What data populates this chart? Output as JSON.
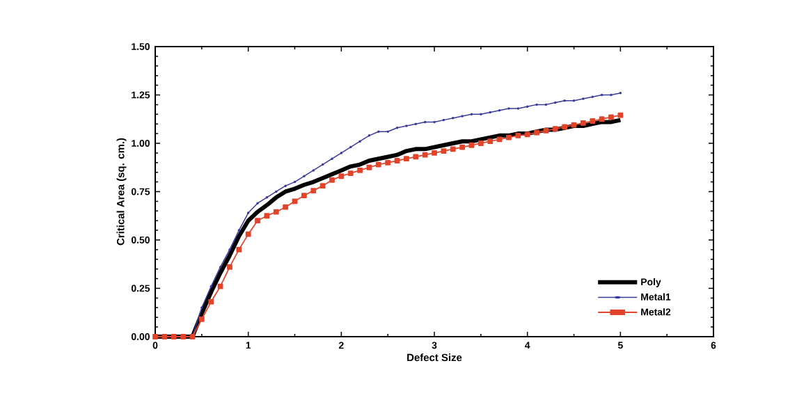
{
  "chart_data": {
    "type": "line",
    "xlabel": "Defect Size",
    "ylabel": "Critical Area (sq. cm.)",
    "x": [
      0,
      0.1,
      0.2,
      0.3,
      0.4,
      0.5,
      0.6,
      0.7,
      0.8,
      0.9,
      1.0,
      1.1,
      1.2,
      1.3,
      1.4,
      1.5,
      1.6,
      1.7,
      1.8,
      1.9,
      2.0,
      2.1,
      2.2,
      2.3,
      2.4,
      2.5,
      2.6,
      2.7,
      2.8,
      2.9,
      3.0,
      3.1,
      3.2,
      3.3,
      3.4,
      3.5,
      3.6,
      3.7,
      3.8,
      3.9,
      4.0,
      4.1,
      4.2,
      4.3,
      4.4,
      4.5,
      4.6,
      4.7,
      4.8,
      4.9,
      5.0
    ],
    "series": [
      {
        "name": "Poly",
        "color": "#000000",
        "marker": "none",
        "values": [
          0,
          0,
          0,
          0,
          0,
          0.12,
          0.23,
          0.33,
          0.42,
          0.52,
          0.6,
          0.645,
          0.68,
          0.72,
          0.75,
          0.765,
          0.785,
          0.8,
          0.82,
          0.84,
          0.86,
          0.88,
          0.89,
          0.91,
          0.92,
          0.93,
          0.94,
          0.96,
          0.97,
          0.97,
          0.98,
          0.99,
          1.0,
          1.01,
          1.01,
          1.02,
          1.03,
          1.04,
          1.04,
          1.05,
          1.05,
          1.06,
          1.07,
          1.07,
          1.08,
          1.09,
          1.09,
          1.1,
          1.11,
          1.11,
          1.12
        ]
      },
      {
        "name": "Metal1",
        "color": "#3a3a9a",
        "marker": "circle",
        "values": [
          null,
          null,
          null,
          0,
          0,
          0.15,
          0.26,
          0.36,
          0.45,
          0.55,
          0.64,
          0.69,
          0.72,
          0.75,
          0.78,
          0.8,
          0.83,
          0.86,
          0.89,
          0.92,
          0.95,
          0.98,
          1.01,
          1.04,
          1.06,
          1.06,
          1.08,
          1.09,
          1.1,
          1.11,
          1.11,
          1.12,
          1.13,
          1.14,
          1.15,
          1.15,
          1.16,
          1.17,
          1.18,
          1.18,
          1.19,
          1.2,
          1.2,
          1.21,
          1.22,
          1.22,
          1.23,
          1.24,
          1.25,
          1.25,
          1.26
        ]
      },
      {
        "name": "Metal2",
        "color": "#e0452c",
        "marker": "square",
        "values": [
          0,
          0,
          0,
          0,
          0,
          0.09,
          0.18,
          0.26,
          0.36,
          0.45,
          0.53,
          0.6,
          0.625,
          0.645,
          0.67,
          0.7,
          0.73,
          0.755,
          0.78,
          0.81,
          0.83,
          0.845,
          0.86,
          0.875,
          0.89,
          0.9,
          0.91,
          0.92,
          0.93,
          0.94,
          0.95,
          0.96,
          0.97,
          0.98,
          0.99,
          1.0,
          1.01,
          1.02,
          1.03,
          1.04,
          1.045,
          1.055,
          1.065,
          1.075,
          1.085,
          1.095,
          1.105,
          1.115,
          1.125,
          1.135,
          1.145
        ]
      }
    ],
    "xlim": [
      0,
      6
    ],
    "xticks": [
      0,
      1,
      2,
      3,
      4,
      5,
      6
    ],
    "ylim": [
      0,
      1.5
    ],
    "yticks": [
      {
        "value": 0,
        "label": "0.00"
      },
      {
        "value": 0.25,
        "label": "0.25"
      },
      {
        "value": 0.5,
        "label": "0.50"
      },
      {
        "value": 0.75,
        "label": "0.75"
      },
      {
        "value": 1.0,
        "label": "1.00"
      },
      {
        "value": 1.25,
        "label": "1.25"
      },
      {
        "value": 1.5,
        "label": "1.50"
      }
    ],
    "grid": false,
    "legend": "bottom right",
    "line_style": "solid"
  }
}
